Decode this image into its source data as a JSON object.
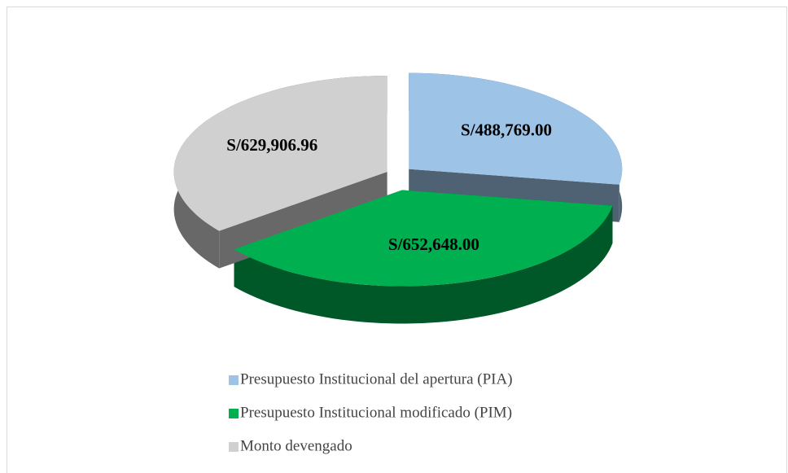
{
  "chart_data": {
    "type": "pie",
    "categories": [
      "Presupuesto Institucional del apertura (PIA)",
      "Presupuesto Institucional modificado (PIM)",
      "Monto devengado"
    ],
    "values": [
      488769.0,
      652648.0,
      629906.96
    ],
    "value_labels": [
      "S/488,769.00",
      "S/652,648.00",
      "S/629,906.96"
    ],
    "colors": [
      "#9dc3e6",
      "#00b050",
      "#d0d0d0"
    ]
  }
}
